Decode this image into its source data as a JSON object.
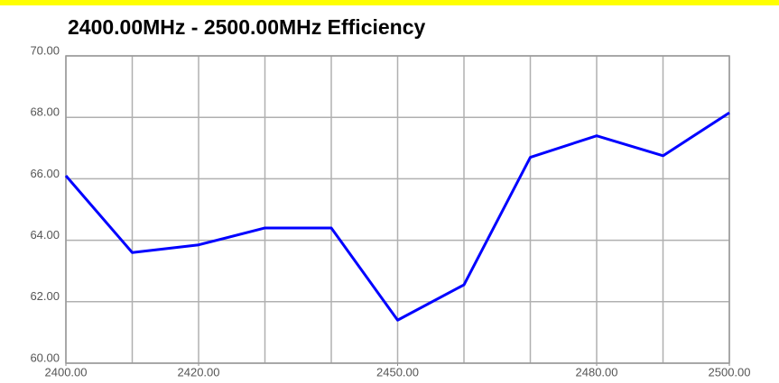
{
  "chart_data": {
    "type": "line",
    "title": "2400.00MHz - 2500.00MHz Efficiency",
    "x": [
      2400,
      2410,
      2420,
      2430,
      2440,
      2450,
      2460,
      2470,
      2480,
      2490,
      2500
    ],
    "series": [
      {
        "color": "#0000ff",
        "values": [
          66.1,
          63.6,
          63.85,
          64.4,
          64.4,
          61.4,
          62.55,
          66.7,
          67.4,
          66.75,
          68.15
        ]
      }
    ],
    "xlim": [
      2400,
      2500
    ],
    "xticks": [
      {
        "value": 2400,
        "label": "2400.00"
      },
      {
        "value": 2420,
        "label": "2420.00"
      },
      {
        "value": 2450,
        "label": "2450.00"
      },
      {
        "value": 2480,
        "label": "2480.00"
      },
      {
        "value": 2500,
        "label": "2500.00"
      }
    ],
    "ylim": [
      60,
      70
    ],
    "yticks": [
      {
        "value": 60,
        "label": "60.00"
      },
      {
        "value": 62,
        "label": "62.00"
      },
      {
        "value": 64,
        "label": "64.00"
      },
      {
        "value": 66,
        "label": "66.00"
      },
      {
        "value": 68,
        "label": "68.00"
      },
      {
        "value": 70,
        "label": "70.00"
      }
    ],
    "grid": true
  }
}
